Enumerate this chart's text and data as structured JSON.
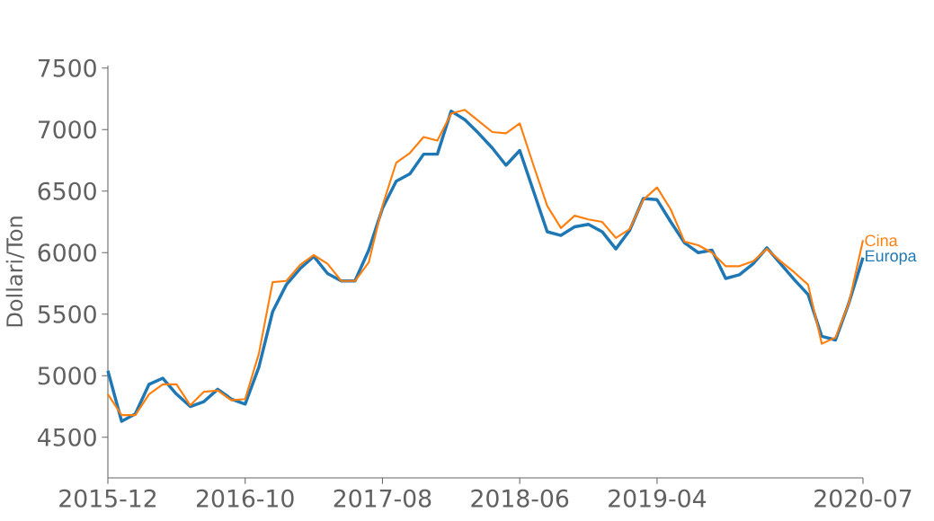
{
  "chart_data": {
    "type": "line",
    "ylabel": "Dollari/Ton",
    "x": [
      "2015-12",
      "2016-01",
      "2016-02",
      "2016-03",
      "2016-04",
      "2016-05",
      "2016-06",
      "2016-07",
      "2016-08",
      "2016-09",
      "2016-10",
      "2016-11",
      "2016-12",
      "2017-01",
      "2017-02",
      "2017-03",
      "2017-04",
      "2017-05",
      "2017-06",
      "2017-07",
      "2017-08",
      "2017-09",
      "2017-10",
      "2017-11",
      "2017-12",
      "2018-01",
      "2018-02",
      "2018-03",
      "2018-04",
      "2018-05",
      "2018-06",
      "2018-07",
      "2018-08",
      "2018-09",
      "2018-10",
      "2018-11",
      "2018-12",
      "2019-01",
      "2019-02",
      "2019-03",
      "2019-04",
      "2019-05",
      "2019-06",
      "2019-07",
      "2019-08",
      "2019-09",
      "2019-10",
      "2019-11",
      "2019-12",
      "2020-01",
      "2020-02",
      "2020-03",
      "2020-04",
      "2020-05",
      "2020-06",
      "2020-07"
    ],
    "series": [
      {
        "name": "Cina",
        "color": "#ff7f0e",
        "values": [
          4850,
          4680,
          4680,
          4850,
          4930,
          4930,
          4760,
          4870,
          4880,
          4800,
          4810,
          5180,
          5760,
          5770,
          5900,
          5980,
          5910,
          5770,
          5770,
          5920,
          6380,
          6730,
          6810,
          6940,
          6910,
          7130,
          7160,
          7070,
          6980,
          6970,
          7050,
          6710,
          6380,
          6200,
          6300,
          6270,
          6250,
          6120,
          6190,
          6430,
          6530,
          6350,
          6090,
          6060,
          6000,
          5890,
          5890,
          5930,
          6030,
          5930,
          5840,
          5740,
          5260,
          5310,
          5600,
          6100
        ]
      },
      {
        "name": "Europa",
        "color": "#1f77b4",
        "values": [
          5040,
          4630,
          4690,
          4930,
          4980,
          4850,
          4750,
          4790,
          4890,
          4810,
          4770,
          5070,
          5520,
          5740,
          5870,
          5970,
          5830,
          5770,
          5770,
          6020,
          6360,
          6580,
          6640,
          6800,
          6800,
          7150,
          7080,
          6970,
          6850,
          6710,
          6830,
          6500,
          6170,
          6140,
          6210,
          6230,
          6170,
          6030,
          6180,
          6440,
          6430,
          6250,
          6080,
          6000,
          6020,
          5790,
          5820,
          5910,
          6040,
          5910,
          5780,
          5660,
          5320,
          5290,
          5600,
          5960
        ]
      }
    ],
    "xlim": [
      "2015-12",
      "2020-07"
    ],
    "xticks": [
      "2015-12",
      "2016-10",
      "2017-08",
      "2018-06",
      "2019-04",
      "2020-07"
    ],
    "ylim": [
      4170,
      7520
    ],
    "yticks": [
      4500,
      5000,
      5500,
      6000,
      6500,
      7000,
      7500
    ],
    "grid": false
  }
}
